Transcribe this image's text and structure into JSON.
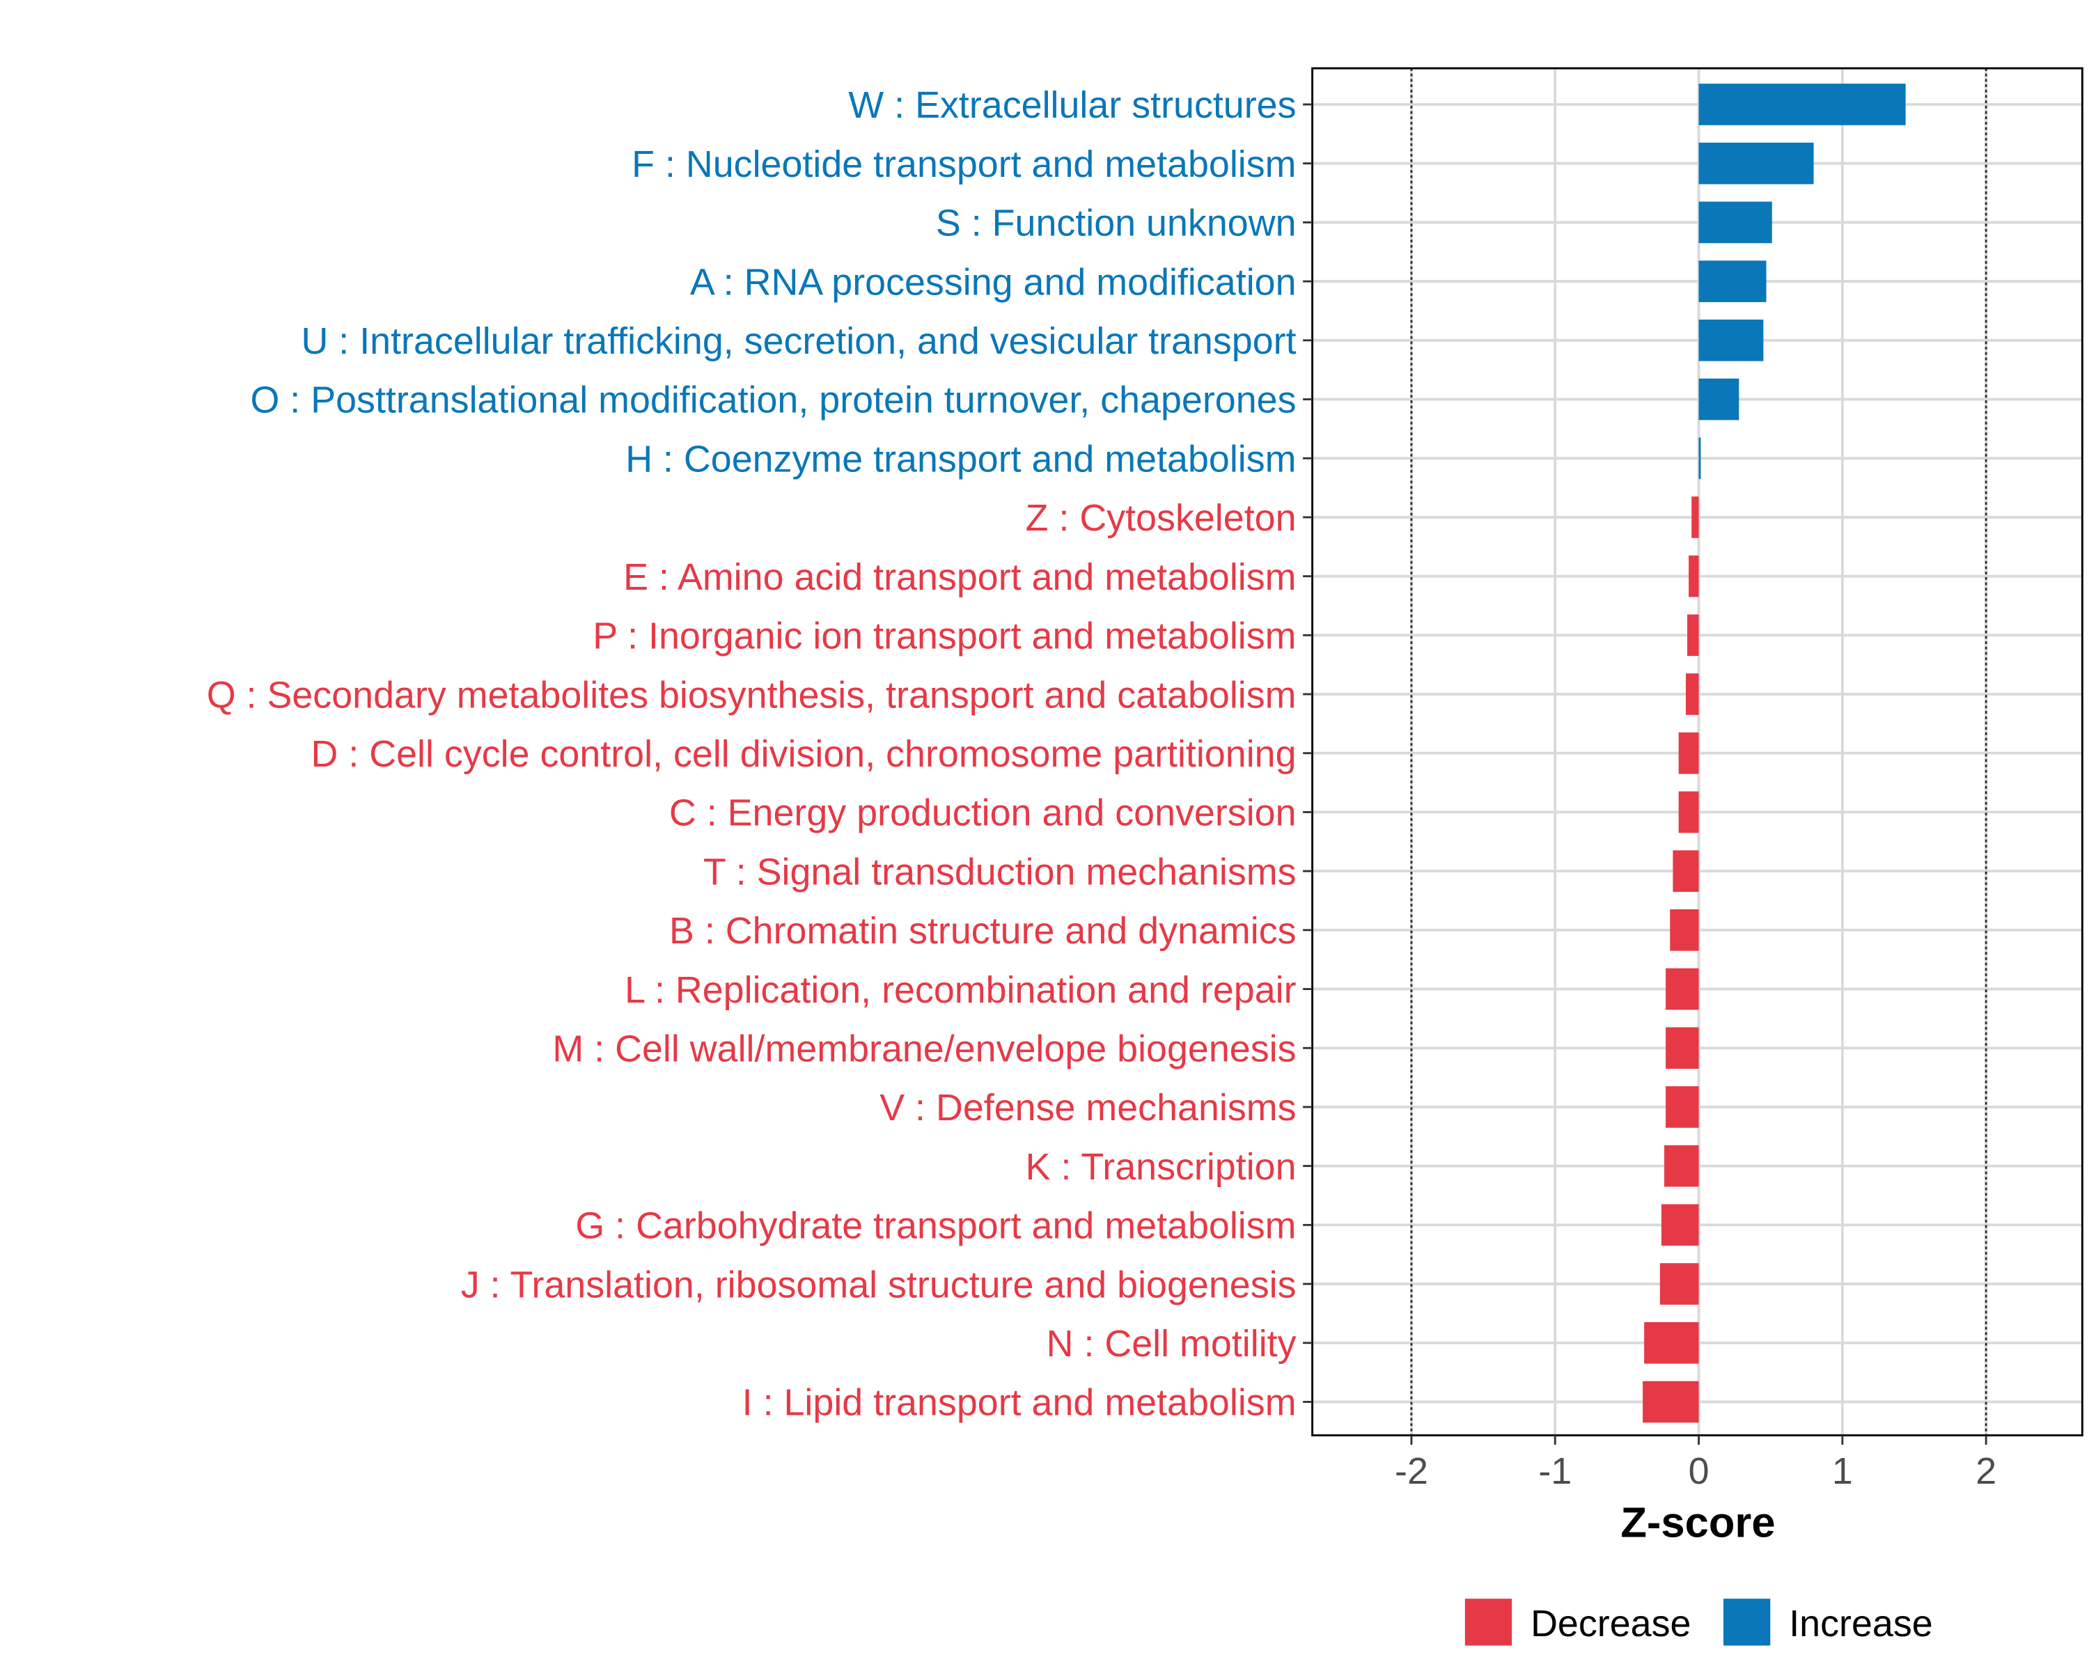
{
  "chart_data": {
    "type": "bar",
    "orientation": "horizontal",
    "title": "",
    "xlabel": "Z-score",
    "ylabel": "",
    "xlim": [
      -2.69,
      2.67
    ],
    "xticks": [
      -2,
      -1,
      0,
      1,
      2
    ],
    "xtick_labels": [
      "-2",
      "-1",
      "0",
      "1",
      "2"
    ],
    "reference_lines": [
      -2,
      2
    ],
    "grid": true,
    "legend": {
      "placement": "bottom",
      "entries": [
        {
          "label": "Decrease",
          "color": "#e63946"
        },
        {
          "label": "Increase",
          "color": "#0a77b8"
        }
      ]
    },
    "categories": [
      "W : Extracellular structures",
      "F : Nucleotide transport and metabolism",
      "S : Function unknown",
      "A : RNA processing and modification",
      "U : Intracellular trafficking, secretion, and vesicular transport",
      "O : Posttranslational modification, protein turnover, chaperones",
      "H : Coenzyme transport and metabolism",
      "Z : Cytoskeleton",
      "E : Amino acid transport and metabolism",
      "P : Inorganic ion transport and metabolism",
      "Q : Secondary metabolites biosynthesis, transport and catabolism",
      "D : Cell cycle control, cell division, chromosome partitioning",
      "C : Energy production and conversion",
      "T : Signal transduction mechanisms",
      "B : Chromatin structure and dynamics",
      "L : Replication, recombination and repair",
      "M : Cell wall/membrane/envelope biogenesis",
      "V : Defense mechanisms",
      "K : Transcription",
      "G : Carbohydrate transport and metabolism",
      "J : Translation, ribosomal structure and biogenesis",
      "N : Cell motility",
      "I : Lipid transport and metabolism"
    ],
    "values": [
      1.44,
      0.8,
      0.51,
      0.47,
      0.45,
      0.28,
      0.01,
      -0.05,
      -0.07,
      -0.08,
      -0.09,
      -0.14,
      -0.14,
      -0.18,
      -0.2,
      -0.23,
      -0.23,
      -0.23,
      -0.24,
      -0.26,
      -0.27,
      -0.38,
      -0.39
    ]
  }
}
